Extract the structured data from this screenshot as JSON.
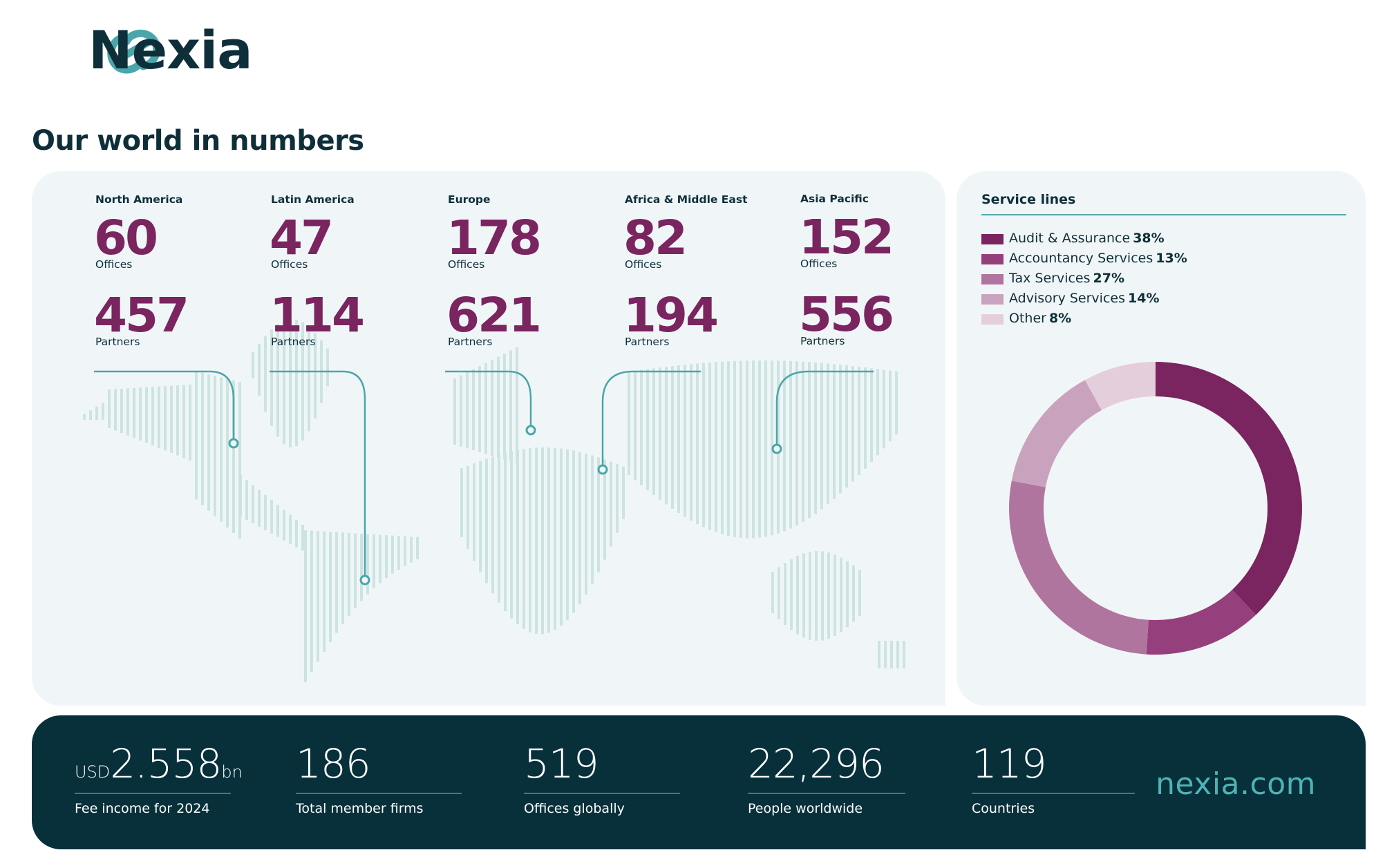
{
  "brand": {
    "name": "Nexia",
    "logo_color": "#4aa6aa",
    "text_color": "#0e2f3a"
  },
  "page_title": "Our world in numbers",
  "colors": {
    "accent": "#7a2460",
    "teal": "#4aa6aa",
    "map_bars": "#cce4e1",
    "panel_bg": "#f0f6f7",
    "footer_bg": "#07303b"
  },
  "regions": [
    {
      "name": "North America",
      "offices": "60",
      "offices_label": "Offices",
      "partners": "457",
      "partners_label": "Partners"
    },
    {
      "name": "Latin America",
      "offices": "47",
      "offices_label": "Offices",
      "partners": "114",
      "partners_label": "Partners"
    },
    {
      "name": "Europe",
      "offices": "178",
      "offices_label": "Offices",
      "partners": "621",
      "partners_label": "Partners"
    },
    {
      "name": "Africa & Middle East",
      "offices": "82",
      "offices_label": "Offices",
      "partners": "194",
      "partners_label": "Partners"
    },
    {
      "name": "Asia Pacific",
      "offices": "152",
      "offices_label": "Offices",
      "partners": "556",
      "partners_label": "Partners"
    }
  ],
  "service_lines": {
    "title": "Service lines",
    "items": [
      {
        "label": "Audit & Assurance",
        "pct": "38%"
      },
      {
        "label": "Accountancy Services",
        "pct": "13%"
      },
      {
        "label": "Tax Services",
        "pct": "27%"
      },
      {
        "label": "Advisory Services",
        "pct": "14%"
      },
      {
        "label": "Other",
        "pct": "8%"
      }
    ]
  },
  "chart_data": {
    "type": "pie",
    "title": "Service lines",
    "categories": [
      "Audit & Assurance",
      "Accountancy Services",
      "Tax Services",
      "Advisory Services",
      "Other"
    ],
    "values": [
      38,
      13,
      27,
      14,
      8
    ],
    "colors": [
      "#7a2460",
      "#963f7d",
      "#b0759f",
      "#c9a2bd",
      "#e5cedc"
    ],
    "style": "donut"
  },
  "footer": {
    "stats": [
      {
        "prefix": "USD",
        "value": "2.558",
        "suffix": "bn",
        "label": "Fee income for 2024"
      },
      {
        "value": "186",
        "label": "Total member firms"
      },
      {
        "value": "519",
        "label": "Offices globally"
      },
      {
        "value": "22,296",
        "label": "People worldwide"
      },
      {
        "value": "119",
        "label": "Countries"
      }
    ],
    "website": "nexia.com"
  }
}
